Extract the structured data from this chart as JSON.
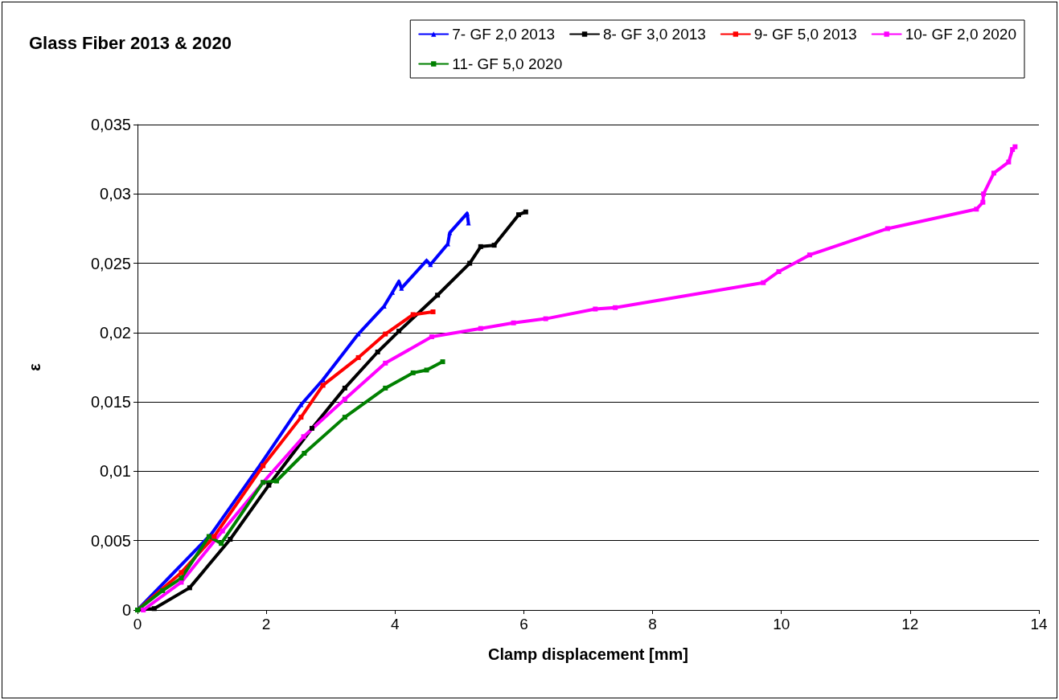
{
  "chart_data": {
    "type": "line",
    "title": "Glass Fiber 2013 & 2020",
    "xlabel": "Clamp displacement [mm]",
    "ylabel": "ε",
    "xlim": [
      0,
      14
    ],
    "xticks": [
      0,
      2,
      4,
      6,
      8,
      10,
      12,
      14
    ],
    "ylim": [
      0,
      0.035
    ],
    "yticks": [
      0,
      {
        "value": 0.005,
        "label": "0,005"
      },
      {
        "value": 0.01,
        "label": "0,01"
      },
      {
        "value": 0.015,
        "label": "0,015"
      },
      {
        "value": 0.02,
        "label": "0,02"
      },
      {
        "value": 0.025,
        "label": "0,025"
      },
      {
        "value": 0.03,
        "label": "0,03"
      },
      {
        "value": 0.035,
        "label": "0,035"
      }
    ],
    "grid": "y",
    "legend": "top right",
    "line_style": "solid",
    "series": [
      {
        "name": "7- GF 2,0 2013",
        "color": "#0000ff",
        "marker": "triangle",
        "x": [
          0,
          1.15,
          1.91,
          2.54,
          2.88,
          3.43,
          3.83,
          3.96,
          4.06,
          4.1,
          4.49,
          4.55,
          4.82,
          4.85,
          5.12,
          5.14
        ],
        "values": [
          0,
          0.0055,
          0.0105,
          0.0148,
          0.0166,
          0.0199,
          0.0219,
          0.0229,
          0.0237,
          0.0232,
          0.0252,
          0.0249,
          0.0264,
          0.0272,
          0.0286,
          0.0279
        ]
      },
      {
        "name": "8- GF 3,0 2013",
        "color": "#000000",
        "marker": "square",
        "x": [
          0,
          0.26,
          0.81,
          1.44,
          2.04,
          2.71,
          3.22,
          3.73,
          4.06,
          4.66,
          5.16,
          5.33,
          5.54,
          5.92,
          6.03
        ],
        "values": [
          0,
          0.0001,
          0.0016,
          0.0051,
          0.009,
          0.0131,
          0.016,
          0.0186,
          0.0201,
          0.0227,
          0.025,
          0.0262,
          0.0263,
          0.0285,
          0.0287
        ]
      },
      {
        "name": "9- GF 5,0 2013",
        "color": "#ff0000",
        "marker": "square",
        "x": [
          0,
          0.68,
          1.19,
          1.95,
          2.54,
          2.88,
          3.43,
          3.85,
          4.28,
          4.59
        ],
        "values": [
          0,
          0.0027,
          0.0053,
          0.0104,
          0.0139,
          0.0162,
          0.0182,
          0.0199,
          0.0213,
          0.0215
        ]
      },
      {
        "name": "10- GF 2,0 2020",
        "color": "#ff00ff",
        "marker": "square",
        "x": [
          0.09,
          0.68,
          1.32,
          1.95,
          2.58,
          3.22,
          3.85,
          4.57,
          5.33,
          5.84,
          6.34,
          7.11,
          7.42,
          9.72,
          9.96,
          10.44,
          11.65,
          13.03,
          13.13,
          13.14,
          13.3,
          13.53,
          13.59,
          13.63
        ],
        "values": [
          0,
          0.002,
          0.0057,
          0.0092,
          0.0125,
          0.0152,
          0.0178,
          0.0197,
          0.0203,
          0.0207,
          0.021,
          0.0217,
          0.0218,
          0.0236,
          0.0244,
          0.0256,
          0.0275,
          0.0289,
          0.0294,
          0.03,
          0.0315,
          0.0323,
          0.0332,
          0.0334
        ]
      },
      {
        "name": "11- GF 5,0 2020",
        "color": "#008000",
        "marker": "square",
        "x": [
          0,
          0.39,
          0.68,
          1.11,
          1.3,
          1.95,
          2.16,
          2.59,
          3.22,
          3.85,
          4.28,
          4.49,
          4.74
        ],
        "values": [
          0,
          0.0014,
          0.0023,
          0.0053,
          0.0048,
          0.0092,
          0.0093,
          0.0113,
          0.0139,
          0.016,
          0.0171,
          0.0173,
          0.0179
        ]
      }
    ]
  }
}
